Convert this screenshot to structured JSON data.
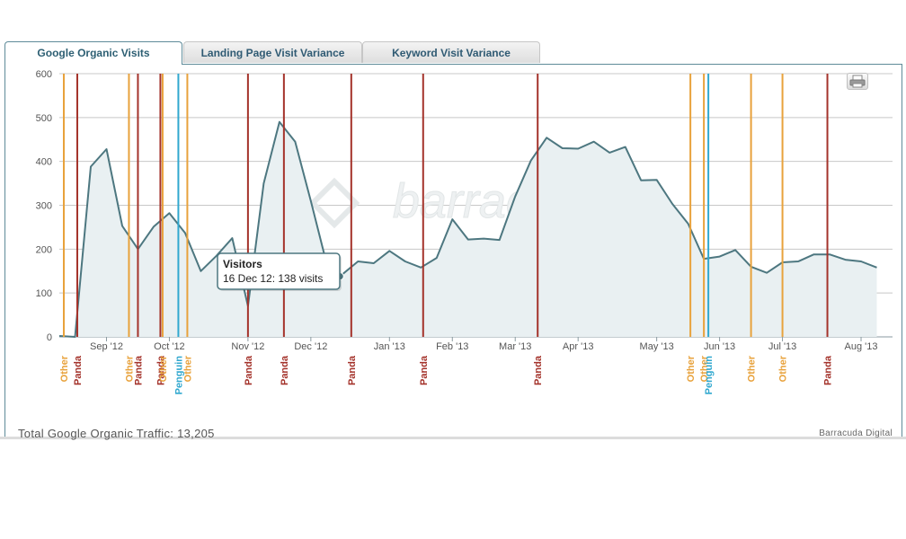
{
  "tabs": [
    {
      "label": "Google Organic Visits",
      "active": true
    },
    {
      "label": "Landing Page Visit Variance",
      "active": false
    },
    {
      "label": "Keyword Visit Variance",
      "active": false
    }
  ],
  "watermark": "barracuda",
  "print_icon": "printer-icon",
  "footer": {
    "total": "Total Google Organic Traffic: 13,205",
    "credit": "Barracuda Digital"
  },
  "tooltip": {
    "title": "Visitors",
    "text": "16 Dec 12: 138 visits"
  },
  "colors": {
    "line": "#4d7780",
    "area": "#e9f0f2",
    "grid": "#c8c8c8",
    "panda": "#a4332b",
    "other": "#e8a23c",
    "penguin": "#31a8cf",
    "tab_text": "#2f5a73"
  },
  "chart_data": {
    "type": "area",
    "title": "",
    "xlabel": "",
    "ylabel": "",
    "ylim": [
      0,
      600
    ],
    "yticks": [
      "0",
      "100",
      "200",
      "300",
      "400",
      "500",
      "600"
    ],
    "xlim": [
      "2012-08-13",
      "2013-08-19"
    ],
    "grid": true,
    "xticks": [
      {
        "label": "Sep '12",
        "date": "2012-09-03"
      },
      {
        "label": "Oct '12",
        "date": "2012-10-01"
      },
      {
        "label": "Nov '12",
        "date": "2012-11-05"
      },
      {
        "label": "Dec '12",
        "date": "2012-12-03"
      },
      {
        "label": "Jan '13",
        "date": "2013-01-07"
      },
      {
        "label": "Feb '13",
        "date": "2013-02-04"
      },
      {
        "label": "Mar '13",
        "date": "2013-03-04"
      },
      {
        "label": "Apr '13",
        "date": "2013-04-01"
      },
      {
        "label": "May '13",
        "date": "2013-05-06"
      },
      {
        "label": "Jun '13",
        "date": "2013-06-03"
      },
      {
        "label": "Jul '13",
        "date": "2013-07-01"
      },
      {
        "label": "Aug '13",
        "date": "2013-08-05"
      }
    ],
    "series": [
      {
        "name": "Visitors",
        "points": [
          {
            "x": "2012-08-13",
            "y": 2
          },
          {
            "x": "2012-08-20",
            "y": 0
          },
          {
            "x": "2012-08-27",
            "y": 388
          },
          {
            "x": "2012-09-03",
            "y": 428
          },
          {
            "x": "2012-09-10",
            "y": 253
          },
          {
            "x": "2012-09-17",
            "y": 200
          },
          {
            "x": "2012-09-24",
            "y": 251
          },
          {
            "x": "2012-10-01",
            "y": 282
          },
          {
            "x": "2012-10-08",
            "y": 237
          },
          {
            "x": "2012-10-15",
            "y": 150
          },
          {
            "x": "2012-10-22",
            "y": 185
          },
          {
            "x": "2012-10-29",
            "y": 225
          },
          {
            "x": "2012-11-05",
            "y": 70
          },
          {
            "x": "2012-11-12",
            "y": 350
          },
          {
            "x": "2012-11-19",
            "y": 490
          },
          {
            "x": "2012-11-26",
            "y": 445
          },
          {
            "x": "2012-12-03",
            "y": 310
          },
          {
            "x": "2012-12-10",
            "y": 168
          },
          {
            "x": "2012-12-16",
            "y": 138
          },
          {
            "x": "2012-12-24",
            "y": 172
          },
          {
            "x": "2012-12-31",
            "y": 168
          },
          {
            "x": "2013-01-07",
            "y": 196
          },
          {
            "x": "2013-01-14",
            "y": 172
          },
          {
            "x": "2013-01-21",
            "y": 158
          },
          {
            "x": "2013-01-28",
            "y": 180
          },
          {
            "x": "2013-02-04",
            "y": 268
          },
          {
            "x": "2013-02-11",
            "y": 222
          },
          {
            "x": "2013-02-18",
            "y": 224
          },
          {
            "x": "2013-02-25",
            "y": 221
          },
          {
            "x": "2013-03-04",
            "y": 320
          },
          {
            "x": "2013-03-11",
            "y": 402
          },
          {
            "x": "2013-03-18",
            "y": 454
          },
          {
            "x": "2013-03-25",
            "y": 430
          },
          {
            "x": "2013-04-01",
            "y": 429
          },
          {
            "x": "2013-04-08",
            "y": 445
          },
          {
            "x": "2013-04-15",
            "y": 420
          },
          {
            "x": "2013-04-22",
            "y": 433
          },
          {
            "x": "2013-04-29",
            "y": 357
          },
          {
            "x": "2013-05-06",
            "y": 358
          },
          {
            "x": "2013-05-13",
            "y": 303
          },
          {
            "x": "2013-05-20",
            "y": 258
          },
          {
            "x": "2013-05-27",
            "y": 178
          },
          {
            "x": "2013-06-03",
            "y": 183
          },
          {
            "x": "2013-06-10",
            "y": 198
          },
          {
            "x": "2013-06-17",
            "y": 160
          },
          {
            "x": "2013-06-24",
            "y": 146
          },
          {
            "x": "2013-07-01",
            "y": 170
          },
          {
            "x": "2013-07-08",
            "y": 172
          },
          {
            "x": "2013-07-15",
            "y": 188
          },
          {
            "x": "2013-07-22",
            "y": 188
          },
          {
            "x": "2013-07-29",
            "y": 176
          },
          {
            "x": "2013-08-05",
            "y": 172
          },
          {
            "x": "2013-08-12",
            "y": 158
          }
        ]
      }
    ],
    "annotations": [
      {
        "label": "Other",
        "type": "other",
        "date": "2012-08-15"
      },
      {
        "label": "Panda",
        "type": "panda",
        "date": "2012-08-21"
      },
      {
        "label": "Other",
        "type": "other",
        "date": "2012-09-13"
      },
      {
        "label": "Panda",
        "type": "panda",
        "date": "2012-09-17"
      },
      {
        "label": "Panda",
        "type": "panda",
        "date": "2012-09-27"
      },
      {
        "label": "Other",
        "type": "other",
        "date": "2012-09-28"
      },
      {
        "label": "Penguin",
        "type": "penguin",
        "date": "2012-10-05"
      },
      {
        "label": "Other",
        "type": "other",
        "date": "2012-10-09"
      },
      {
        "label": "Panda",
        "type": "panda",
        "date": "2012-11-05"
      },
      {
        "label": "Panda",
        "type": "panda",
        "date": "2012-11-21"
      },
      {
        "label": "Panda",
        "type": "panda",
        "date": "2012-12-21"
      },
      {
        "label": "Panda",
        "type": "panda",
        "date": "2013-01-22"
      },
      {
        "label": "Panda",
        "type": "panda",
        "date": "2013-03-14"
      },
      {
        "label": "Other",
        "type": "other",
        "date": "2013-05-21"
      },
      {
        "label": "Other",
        "type": "other",
        "date": "2013-05-27"
      },
      {
        "label": "Penguin",
        "type": "penguin",
        "date": "2013-05-29"
      },
      {
        "label": "Other",
        "type": "other",
        "date": "2013-06-17"
      },
      {
        "label": "Other",
        "type": "other",
        "date": "2013-07-01"
      },
      {
        "label": "Panda",
        "type": "panda",
        "date": "2013-07-21"
      }
    ],
    "highlight": {
      "x": "2012-12-16",
      "y": 138
    }
  }
}
